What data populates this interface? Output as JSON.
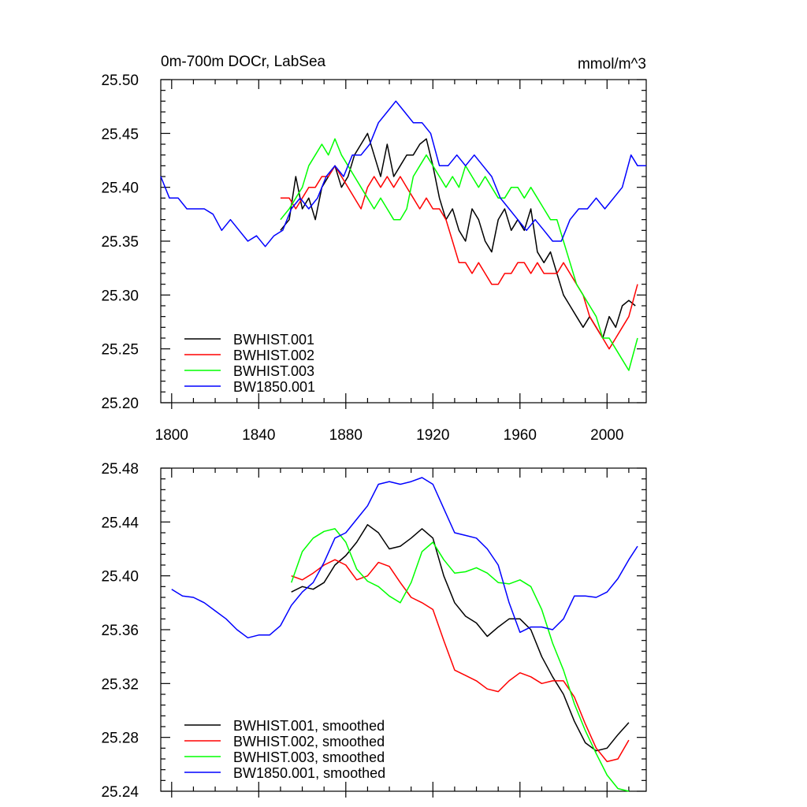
{
  "chart_data": [
    {
      "type": "line",
      "title": "0m-700m DOCr, LabSea",
      "units": "mmol/m^3",
      "xlim": [
        1795,
        2018
      ],
      "ylim": [
        25.2,
        25.5
      ],
      "xticks": [
        1800,
        1840,
        1880,
        1920,
        1960,
        2000
      ],
      "xtick_labels": [
        "1800",
        "1840",
        "1880",
        "1920",
        "1960",
        "2000"
      ],
      "yticks": [
        25.2,
        25.25,
        25.3,
        25.35,
        25.4,
        25.45,
        25.5
      ],
      "ytick_labels": [
        "25.20",
        "25.25",
        "25.30",
        "25.35",
        "25.40",
        "25.45",
        "25.50"
      ],
      "grid": false,
      "legend_position": "bottom-left",
      "series": [
        {
          "name": "BWHIST.001",
          "color": "#000000",
          "x": [
            1850,
            1854,
            1857,
            1860,
            1863,
            1866,
            1869,
            1872,
            1875,
            1878,
            1881,
            1884,
            1887,
            1890,
            1893,
            1896,
            1899,
            1902,
            1905,
            1908,
            1911,
            1914,
            1917,
            1920,
            1923,
            1926,
            1929,
            1932,
            1935,
            1938,
            1941,
            1944,
            1947,
            1950,
            1953,
            1956,
            1959,
            1962,
            1965,
            1968,
            1971,
            1974,
            1977,
            1980,
            1983,
            1986,
            1989,
            1992,
            1995,
            1998,
            2001,
            2004,
            2007,
            2010,
            2013
          ],
          "y": [
            25.36,
            25.37,
            25.41,
            25.38,
            25.39,
            25.37,
            25.4,
            25.41,
            25.42,
            25.4,
            25.41,
            25.43,
            25.44,
            25.45,
            25.43,
            25.41,
            25.44,
            25.41,
            25.42,
            25.43,
            25.43,
            25.44,
            25.445,
            25.42,
            25.39,
            25.37,
            25.38,
            25.36,
            25.35,
            25.38,
            25.37,
            25.35,
            25.34,
            25.37,
            25.38,
            25.36,
            25.37,
            25.36,
            25.38,
            25.34,
            25.33,
            25.34,
            25.32,
            25.3,
            25.29,
            25.28,
            25.27,
            25.28,
            25.27,
            25.26,
            25.28,
            25.27,
            25.29,
            25.295,
            25.29
          ]
        },
        {
          "name": "BWHIST.002",
          "color": "#ff0000",
          "x": [
            1850,
            1854,
            1857,
            1860,
            1863,
            1866,
            1869,
            1872,
            1875,
            1878,
            1881,
            1884,
            1887,
            1890,
            1893,
            1896,
            1899,
            1902,
            1905,
            1908,
            1911,
            1914,
            1917,
            1920,
            1923,
            1926,
            1929,
            1932,
            1935,
            1938,
            1941,
            1944,
            1947,
            1950,
            1953,
            1956,
            1959,
            1962,
            1965,
            1968,
            1971,
            1974,
            1977,
            1980,
            1983,
            1986,
            1989,
            1992,
            1995,
            1998,
            2001,
            2004,
            2007,
            2010,
            2014
          ],
          "y": [
            25.39,
            25.39,
            25.38,
            25.39,
            25.4,
            25.4,
            25.41,
            25.41,
            25.42,
            25.41,
            25.4,
            25.39,
            25.38,
            25.4,
            25.41,
            25.4,
            25.41,
            25.4,
            25.41,
            25.4,
            25.39,
            25.38,
            25.39,
            25.38,
            25.38,
            25.37,
            25.35,
            25.33,
            25.33,
            25.32,
            25.33,
            25.32,
            25.31,
            25.31,
            25.32,
            25.32,
            25.33,
            25.33,
            25.32,
            25.33,
            25.32,
            25.32,
            25.32,
            25.33,
            25.32,
            25.31,
            25.3,
            25.28,
            25.27,
            25.26,
            25.25,
            25.26,
            25.27,
            25.28,
            25.31
          ]
        },
        {
          "name": "BWHIST.003",
          "color": "#00ff00",
          "x": [
            1850,
            1854,
            1857,
            1860,
            1863,
            1866,
            1869,
            1872,
            1875,
            1878,
            1881,
            1884,
            1887,
            1890,
            1893,
            1896,
            1899,
            1902,
            1905,
            1908,
            1911,
            1914,
            1917,
            1920,
            1923,
            1926,
            1929,
            1932,
            1935,
            1938,
            1941,
            1944,
            1947,
            1950,
            1953,
            1956,
            1959,
            1962,
            1965,
            1968,
            1971,
            1974,
            1977,
            1980,
            1983,
            1986,
            1989,
            1992,
            1995,
            1998,
            2001,
            2004,
            2007,
            2010,
            2014
          ],
          "y": [
            25.37,
            25.38,
            25.39,
            25.4,
            25.42,
            25.43,
            25.44,
            25.43,
            25.445,
            25.43,
            25.42,
            25.41,
            25.4,
            25.39,
            25.38,
            25.39,
            25.38,
            25.37,
            25.37,
            25.38,
            25.41,
            25.42,
            25.43,
            25.42,
            25.41,
            25.4,
            25.41,
            25.4,
            25.42,
            25.41,
            25.4,
            25.41,
            25.4,
            25.39,
            25.39,
            25.4,
            25.4,
            25.39,
            25.4,
            25.39,
            25.38,
            25.37,
            25.37,
            25.35,
            25.33,
            25.31,
            25.3,
            25.29,
            25.28,
            25.26,
            25.26,
            25.25,
            25.24,
            25.23,
            25.26
          ]
        },
        {
          "name": "BW1850.001",
          "color": "#0000ff",
          "x": [
            1795,
            1799,
            1803,
            1807,
            1811,
            1815,
            1819,
            1823,
            1827,
            1831,
            1835,
            1839,
            1843,
            1847,
            1851,
            1855,
            1859,
            1863,
            1867,
            1871,
            1875,
            1879,
            1883,
            1887,
            1891,
            1895,
            1899,
            1903,
            1907,
            1911,
            1915,
            1919,
            1923,
            1927,
            1931,
            1935,
            1939,
            1943,
            1947,
            1951,
            1955,
            1959,
            1963,
            1967,
            1971,
            1975,
            1979,
            1983,
            1987,
            1991,
            1995,
            1999,
            2003,
            2007,
            2011,
            2014,
            2018
          ],
          "y": [
            25.41,
            25.39,
            25.39,
            25.38,
            25.38,
            25.38,
            25.375,
            25.36,
            25.37,
            25.36,
            25.35,
            25.355,
            25.345,
            25.355,
            25.36,
            25.38,
            25.39,
            25.38,
            25.39,
            25.41,
            25.42,
            25.41,
            25.43,
            25.43,
            25.44,
            25.46,
            25.47,
            25.48,
            25.47,
            25.46,
            25.46,
            25.45,
            25.42,
            25.42,
            25.43,
            25.42,
            25.43,
            25.42,
            25.41,
            25.39,
            25.38,
            25.37,
            25.36,
            25.37,
            25.36,
            25.35,
            25.35,
            25.37,
            25.38,
            25.38,
            25.39,
            25.38,
            25.39,
            25.4,
            25.43,
            25.42,
            25.42
          ]
        }
      ],
      "legend": [
        "BWHIST.001",
        "BWHIST.002",
        "BWHIST.003",
        "BW1850.001"
      ]
    },
    {
      "type": "line",
      "xlim": [
        1795,
        2018
      ],
      "ylim": [
        25.24,
        25.48
      ],
      "xticks": [
        1800,
        1840,
        1880,
        1920,
        1960,
        2000
      ],
      "yticks": [
        25.24,
        25.28,
        25.32,
        25.36,
        25.4,
        25.44,
        25.48
      ],
      "ytick_labels": [
        "25.24",
        "25.28",
        "25.32",
        "25.36",
        "25.40",
        "25.44",
        "25.48"
      ],
      "grid": false,
      "legend_position": "bottom-left",
      "series": [
        {
          "name": "BWHIST.001, smoothed",
          "color": "#000000",
          "x": [
            1855,
            1860,
            1865,
            1870,
            1875,
            1880,
            1885,
            1890,
            1895,
            1900,
            1905,
            1910,
            1915,
            1920,
            1925,
            1930,
            1935,
            1940,
            1945,
            1950,
            1955,
            1960,
            1965,
            1970,
            1975,
            1980,
            1985,
            1990,
            1995,
            2000,
            2005,
            2010
          ],
          "y": [
            25.388,
            25.392,
            25.39,
            25.395,
            25.408,
            25.415,
            25.425,
            25.438,
            25.432,
            25.42,
            25.422,
            25.428,
            25.435,
            25.428,
            25.4,
            25.38,
            25.37,
            25.365,
            25.355,
            25.362,
            25.368,
            25.368,
            25.36,
            25.34,
            25.325,
            25.312,
            25.292,
            25.276,
            25.27,
            25.272,
            25.282,
            25.291
          ]
        },
        {
          "name": "BWHIST.002, smoothed",
          "color": "#ff0000",
          "x": [
            1855,
            1860,
            1865,
            1870,
            1875,
            1880,
            1885,
            1890,
            1895,
            1900,
            1905,
            1910,
            1915,
            1920,
            1925,
            1930,
            1935,
            1940,
            1945,
            1950,
            1955,
            1960,
            1965,
            1970,
            1975,
            1980,
            1985,
            1990,
            1995,
            2000,
            2005,
            2010
          ],
          "y": [
            25.4,
            25.397,
            25.402,
            25.408,
            25.412,
            25.408,
            25.397,
            25.4,
            25.41,
            25.407,
            25.395,
            25.384,
            25.38,
            25.375,
            25.352,
            25.33,
            25.326,
            25.322,
            25.316,
            25.314,
            25.322,
            25.328,
            25.325,
            25.32,
            25.322,
            25.322,
            25.31,
            25.29,
            25.272,
            25.262,
            25.264,
            25.278
          ]
        },
        {
          "name": "BWHIST.003, smoothed",
          "color": "#00ff00",
          "x": [
            1855,
            1860,
            1865,
            1870,
            1875,
            1880,
            1885,
            1890,
            1895,
            1900,
            1905,
            1910,
            1915,
            1920,
            1925,
            1930,
            1935,
            1940,
            1945,
            1950,
            1955,
            1960,
            1965,
            1970,
            1975,
            1980,
            1985,
            1990,
            1995,
            2000,
            2005,
            2010
          ],
          "y": [
            25.395,
            25.418,
            25.428,
            25.433,
            25.435,
            25.425,
            25.405,
            25.396,
            25.392,
            25.385,
            25.38,
            25.395,
            25.418,
            25.425,
            25.412,
            25.402,
            25.403,
            25.406,
            25.402,
            25.395,
            25.394,
            25.397,
            25.392,
            25.375,
            25.35,
            25.33,
            25.305,
            25.285,
            25.268,
            25.252,
            25.242,
            25.24
          ]
        },
        {
          "name": "BW1850.001, smoothed",
          "color": "#0000ff",
          "x": [
            1800,
            1805,
            1810,
            1815,
            1820,
            1825,
            1830,
            1835,
            1840,
            1845,
            1850,
            1855,
            1860,
            1865,
            1870,
            1875,
            1880,
            1885,
            1890,
            1895,
            1900,
            1905,
            1910,
            1915,
            1920,
            1925,
            1930,
            1935,
            1940,
            1945,
            1950,
            1955,
            1960,
            1965,
            1970,
            1975,
            1980,
            1985,
            1990,
            1995,
            2000,
            2005,
            2010,
            2014
          ],
          "y": [
            25.39,
            25.385,
            25.384,
            25.38,
            25.374,
            25.368,
            25.36,
            25.354,
            25.356,
            25.356,
            25.363,
            25.378,
            25.388,
            25.395,
            25.41,
            25.428,
            25.432,
            25.442,
            25.452,
            25.468,
            25.47,
            25.468,
            25.47,
            25.473,
            25.468,
            25.45,
            25.432,
            25.43,
            25.428,
            25.42,
            25.408,
            25.38,
            25.358,
            25.362,
            25.362,
            25.36,
            25.368,
            25.385,
            25.385,
            25.384,
            25.388,
            25.398,
            25.412,
            25.422
          ]
        }
      ],
      "legend": [
        "BWHIST.001, smoothed",
        "BWHIST.002, smoothed",
        "BWHIST.003, smoothed",
        "BW1850.001, smoothed"
      ]
    }
  ]
}
